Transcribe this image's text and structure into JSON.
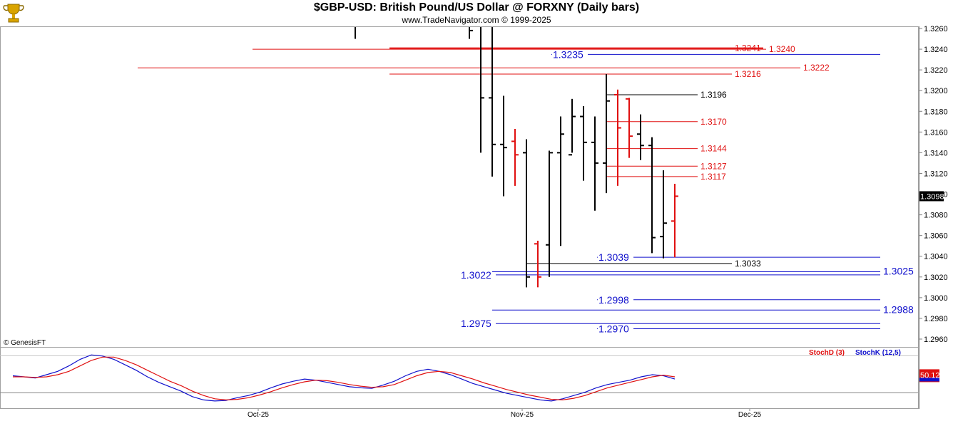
{
  "header": {
    "title": "$GBP-USD:  British Pound/US Dollar @ FORXNY  (Daily bars)",
    "subtitle": "www.TradeNavigator.com © 1999-2025",
    "copyright": "© GenesisFT"
  },
  "colors": {
    "up_bar": "#000000",
    "down_bar": "#e01010",
    "resistance": "#e01010",
    "support": "#1010cc",
    "neutral_level": "#000000",
    "stoch_d": "#e01010",
    "stoch_k": "#1010cc"
  },
  "chart_data": [
    {
      "type": "ohlc",
      "title": "$GBP-USD:  British Pound/US Dollar @ FORXNY  (Daily bars)",
      "ylim": [
        1.295,
        1.3265
      ],
      "y_ticks": [
        "1.3260",
        "1.3240",
        "1.3220",
        "1.3200",
        "1.3180",
        "1.3160",
        "1.3140",
        "1.3120",
        "1.3100",
        "1.3080",
        "1.3060",
        "1.3040",
        "1.3020",
        "1.3000",
        "1.2980",
        "1.2960"
      ],
      "x_ticks": [
        "Oct-25",
        "Nov-25",
        "Dec-25"
      ],
      "last_price": "1.3098",
      "bars": [
        {
          "h": 1.328,
          "l": 1.325,
          "o": 1.3265,
          "c": 1.327,
          "dir": "up"
        },
        {
          "h": 1.328,
          "l": 1.325,
          "o": 1.3265,
          "c": 1.3258,
          "dir": "up"
        },
        {
          "h": 1.3285,
          "l": 1.314,
          "o": 1.327,
          "c": 1.3193,
          "dir": "up"
        },
        {
          "h": 1.3285,
          "l": 1.3117,
          "o": 1.3193,
          "c": 1.3148,
          "dir": "up"
        },
        {
          "h": 1.3195,
          "l": 1.3098,
          "o": 1.3148,
          "c": 1.3145,
          "dir": "up"
        },
        {
          "h": 1.3163,
          "l": 1.3108,
          "o": 1.3151,
          "c": 1.3138,
          "dir": "down"
        },
        {
          "h": 1.3153,
          "l": 1.301,
          "o": 1.314,
          "c": 1.302,
          "dir": "up"
        },
        {
          "h": 1.3055,
          "l": 1.301,
          "o": 1.3052,
          "c": 1.302,
          "dir": "down"
        },
        {
          "h": 1.3142,
          "l": 1.302,
          "o": 1.3051,
          "c": 1.314,
          "dir": "up"
        },
        {
          "h": 1.3175,
          "l": 1.305,
          "o": 1.314,
          "c": 1.3158,
          "dir": "up"
        },
        {
          "h": 1.3192,
          "l": 1.314,
          "o": 1.3138,
          "c": 1.3175,
          "dir": "up"
        },
        {
          "h": 1.3185,
          "l": 1.3113,
          "o": 1.3175,
          "c": 1.315,
          "dir": "up"
        },
        {
          "h": 1.3175,
          "l": 1.3084,
          "o": 1.315,
          "c": 1.313,
          "dir": "up"
        },
        {
          "h": 1.3216,
          "l": 1.3101,
          "o": 1.313,
          "c": 1.319,
          "dir": "up"
        },
        {
          "h": 1.3201,
          "l": 1.3108,
          "o": 1.3196,
          "c": 1.3164,
          "dir": "down"
        },
        {
          "h": 1.3193,
          "l": 1.3135,
          "o": 1.3192,
          "c": 1.3156,
          "dir": "down"
        },
        {
          "h": 1.3177,
          "l": 1.3133,
          "o": 1.3158,
          "c": 1.3147,
          "dir": "up"
        },
        {
          "h": 1.3155,
          "l": 1.3043,
          "o": 1.3147,
          "c": 1.3058,
          "dir": "up"
        },
        {
          "h": 1.3123,
          "l": 1.3038,
          "o": 1.3059,
          "c": 1.3072,
          "dir": "up"
        },
        {
          "h": 1.311,
          "l": 1.3039,
          "o": 1.3074,
          "c": 1.3098,
          "dir": "down"
        }
      ],
      "levels": [
        {
          "value": 1.3241,
          "label": "1.3241",
          "color": "resistance",
          "label_pos": "mid"
        },
        {
          "value": 1.324,
          "label": "1.3240",
          "color": "resistance",
          "label_pos": "right"
        },
        {
          "value": 1.3235,
          "label": "1.3235",
          "color": "support",
          "label_pos": "left"
        },
        {
          "value": 1.3222,
          "label": "1.3222",
          "color": "resistance",
          "label_pos": "right"
        },
        {
          "value": 1.3216,
          "label": "1.3216",
          "color": "resistance",
          "label_pos": "mid"
        },
        {
          "value": 1.3196,
          "label": "1.3196",
          "color": "neutral_level",
          "label_pos": "mid"
        },
        {
          "value": 1.317,
          "label": "1.3170",
          "color": "resistance",
          "label_pos": "mid"
        },
        {
          "value": 1.3144,
          "label": "1.3144",
          "color": "resistance",
          "label_pos": "mid"
        },
        {
          "value": 1.3127,
          "label": "1.3127",
          "color": "resistance",
          "label_pos": "mid"
        },
        {
          "value": 1.3117,
          "label": "1.3117",
          "color": "resistance",
          "label_pos": "mid"
        },
        {
          "value": 1.3039,
          "label": "1.3039",
          "color": "support",
          "label_pos": "left"
        },
        {
          "value": 1.3033,
          "label": "1.3033",
          "color": "neutral_level",
          "label_pos": "mid"
        },
        {
          "value": 1.3025,
          "label": "1.3025",
          "color": "support",
          "label_pos": "right"
        },
        {
          "value": 1.3022,
          "label": "1.3022",
          "color": "support",
          "label_pos": "left"
        },
        {
          "value": 1.2998,
          "label": "1.2998",
          "color": "support",
          "label_pos": "left"
        },
        {
          "value": 1.2988,
          "label": "1.2988",
          "color": "support",
          "label_pos": "right"
        },
        {
          "value": 1.2975,
          "label": "1.2975",
          "color": "support",
          "label_pos": "left"
        },
        {
          "value": 1.297,
          "label": "1.2970",
          "color": "support",
          "label_pos": "left"
        }
      ]
    },
    {
      "type": "line",
      "legend": [
        "StochD (3)",
        "StochK (12,5)"
      ],
      "ylim": [
        0,
        100
      ],
      "last_value": "50.12",
      "series": [
        {
          "name": "StochK (12,5)",
          "color": "stoch_k",
          "values": [
            50,
            48,
            46,
            52,
            58,
            68,
            80,
            88,
            86,
            80,
            70,
            60,
            48,
            38,
            30,
            22,
            12,
            6,
            4,
            5,
            10,
            14,
            20,
            28,
            35,
            40,
            44,
            42,
            38,
            34,
            30,
            28,
            27,
            33,
            40,
            50,
            58,
            62,
            58,
            52,
            44,
            36,
            30,
            24,
            18,
            14,
            10,
            6,
            4,
            8,
            14,
            20,
            28,
            34,
            38,
            42,
            48,
            52,
            50,
            44
          ]
        },
        {
          "name": "StochD (3)",
          "color": "stoch_d",
          "values": [
            48,
            48,
            47,
            48,
            52,
            58,
            68,
            78,
            84,
            84,
            78,
            70,
            60,
            50,
            40,
            32,
            22,
            14,
            8,
            6,
            7,
            10,
            15,
            21,
            28,
            34,
            39,
            42,
            41,
            38,
            34,
            31,
            29,
            30,
            34,
            42,
            50,
            56,
            58,
            56,
            50,
            44,
            37,
            31,
            25,
            20,
            15,
            11,
            7,
            6,
            9,
            14,
            21,
            28,
            33,
            38,
            43,
            48,
            51,
            48
          ]
        }
      ],
      "marker_x": 42
    }
  ]
}
